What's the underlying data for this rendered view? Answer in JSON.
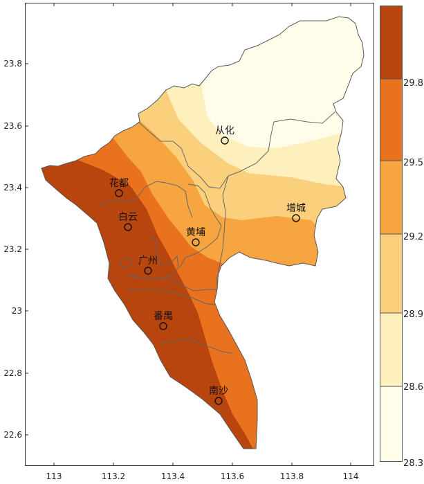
{
  "map": {
    "x_ticks": [
      "113",
      "113.2",
      "113.4",
      "113.6",
      "113.8",
      "114"
    ],
    "y_ticks": [
      "23.8",
      "23.6",
      "23.4",
      "23.2",
      "23",
      "22.8",
      "22.6"
    ],
    "cities": [
      {
        "name": "从化",
        "lon": 113.58,
        "lat": 23.55
      },
      {
        "name": "花都",
        "lon": 113.22,
        "lat": 23.38
      },
      {
        "name": "白云",
        "lon": 113.25,
        "lat": 23.27
      },
      {
        "name": "黄埔",
        "lon": 113.48,
        "lat": 23.22
      },
      {
        "name": "增城",
        "lon": 113.82,
        "lat": 23.3
      },
      {
        "name": "广州",
        "lon": 113.32,
        "lat": 23.13
      },
      {
        "name": "番禺",
        "lon": 113.37,
        "lat": 22.95
      },
      {
        "name": "南沙",
        "lon": 113.56,
        "lat": 22.71
      }
    ]
  },
  "colorbar": {
    "labels": [
      "29.8",
      "29.5",
      "29.2",
      "28.9",
      "28.6",
      "28.3"
    ],
    "colors": [
      "#b8440e",
      "#e9721f",
      "#f6a541",
      "#fbd07d",
      "#fdf0bd",
      "#fffdea"
    ]
  }
}
